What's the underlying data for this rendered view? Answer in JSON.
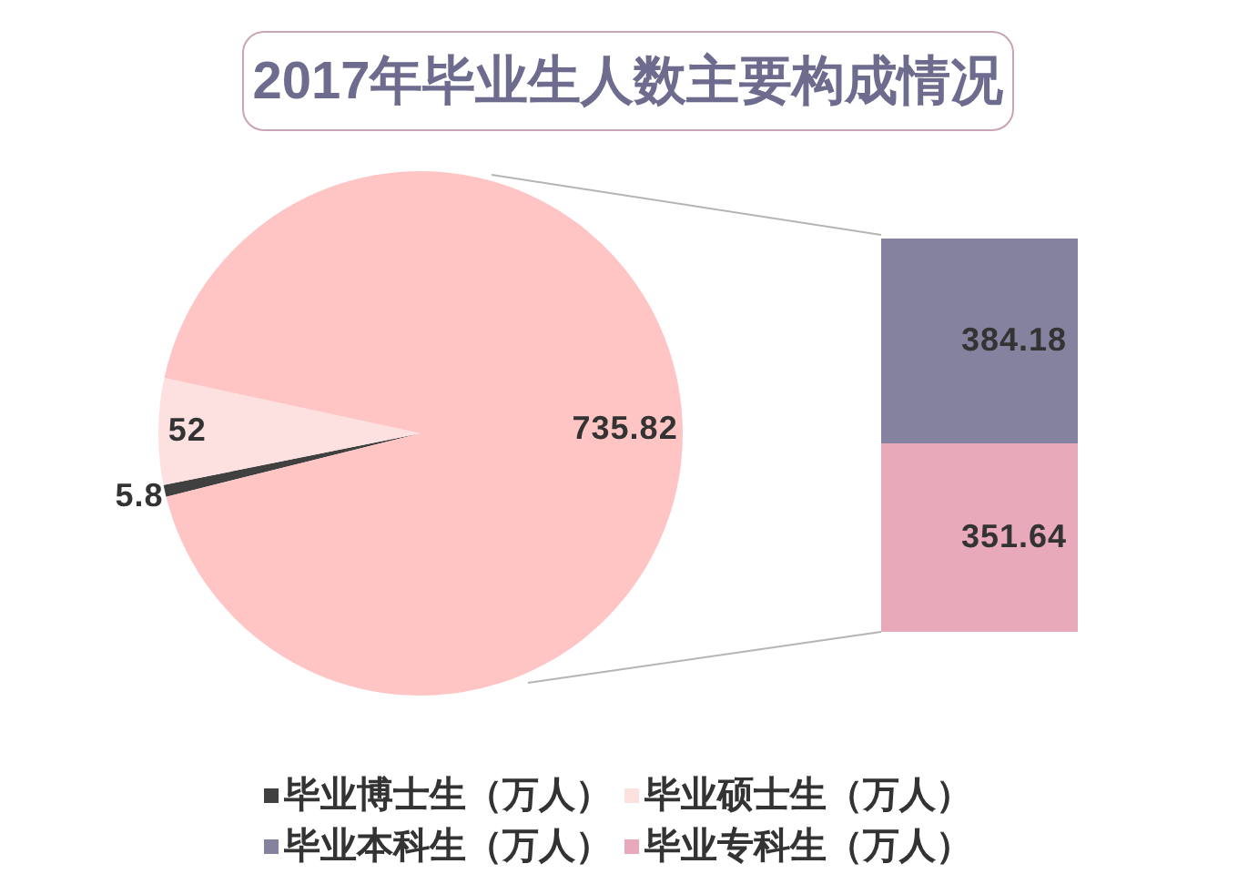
{
  "chart_data": [
    {
      "type": "pie",
      "title": "2017年毕业生人数主要构成情况",
      "categories": [
        "毕业博士生（万人）",
        "毕业硕士生（万人）",
        null
      ],
      "values": [
        5.8,
        52,
        735.82
      ],
      "colors": [
        "#404040",
        "#fde0e0",
        "#ffc4c4"
      ],
      "data_labels": true,
      "legend": "bottom"
    },
    {
      "type": "bar",
      "stacked": true,
      "categories": [
        null
      ],
      "series": [
        {
          "name": "毕业专科生（万人）",
          "color": "#e8aabb",
          "values": [
            351.64
          ]
        },
        {
          "name": "毕业本科生（万人）",
          "color": "#85829f",
          "values": [
            384.18
          ]
        }
      ],
      "data_labels": true,
      "legend": "bottom",
      "tick_labels": false
    }
  ]
}
